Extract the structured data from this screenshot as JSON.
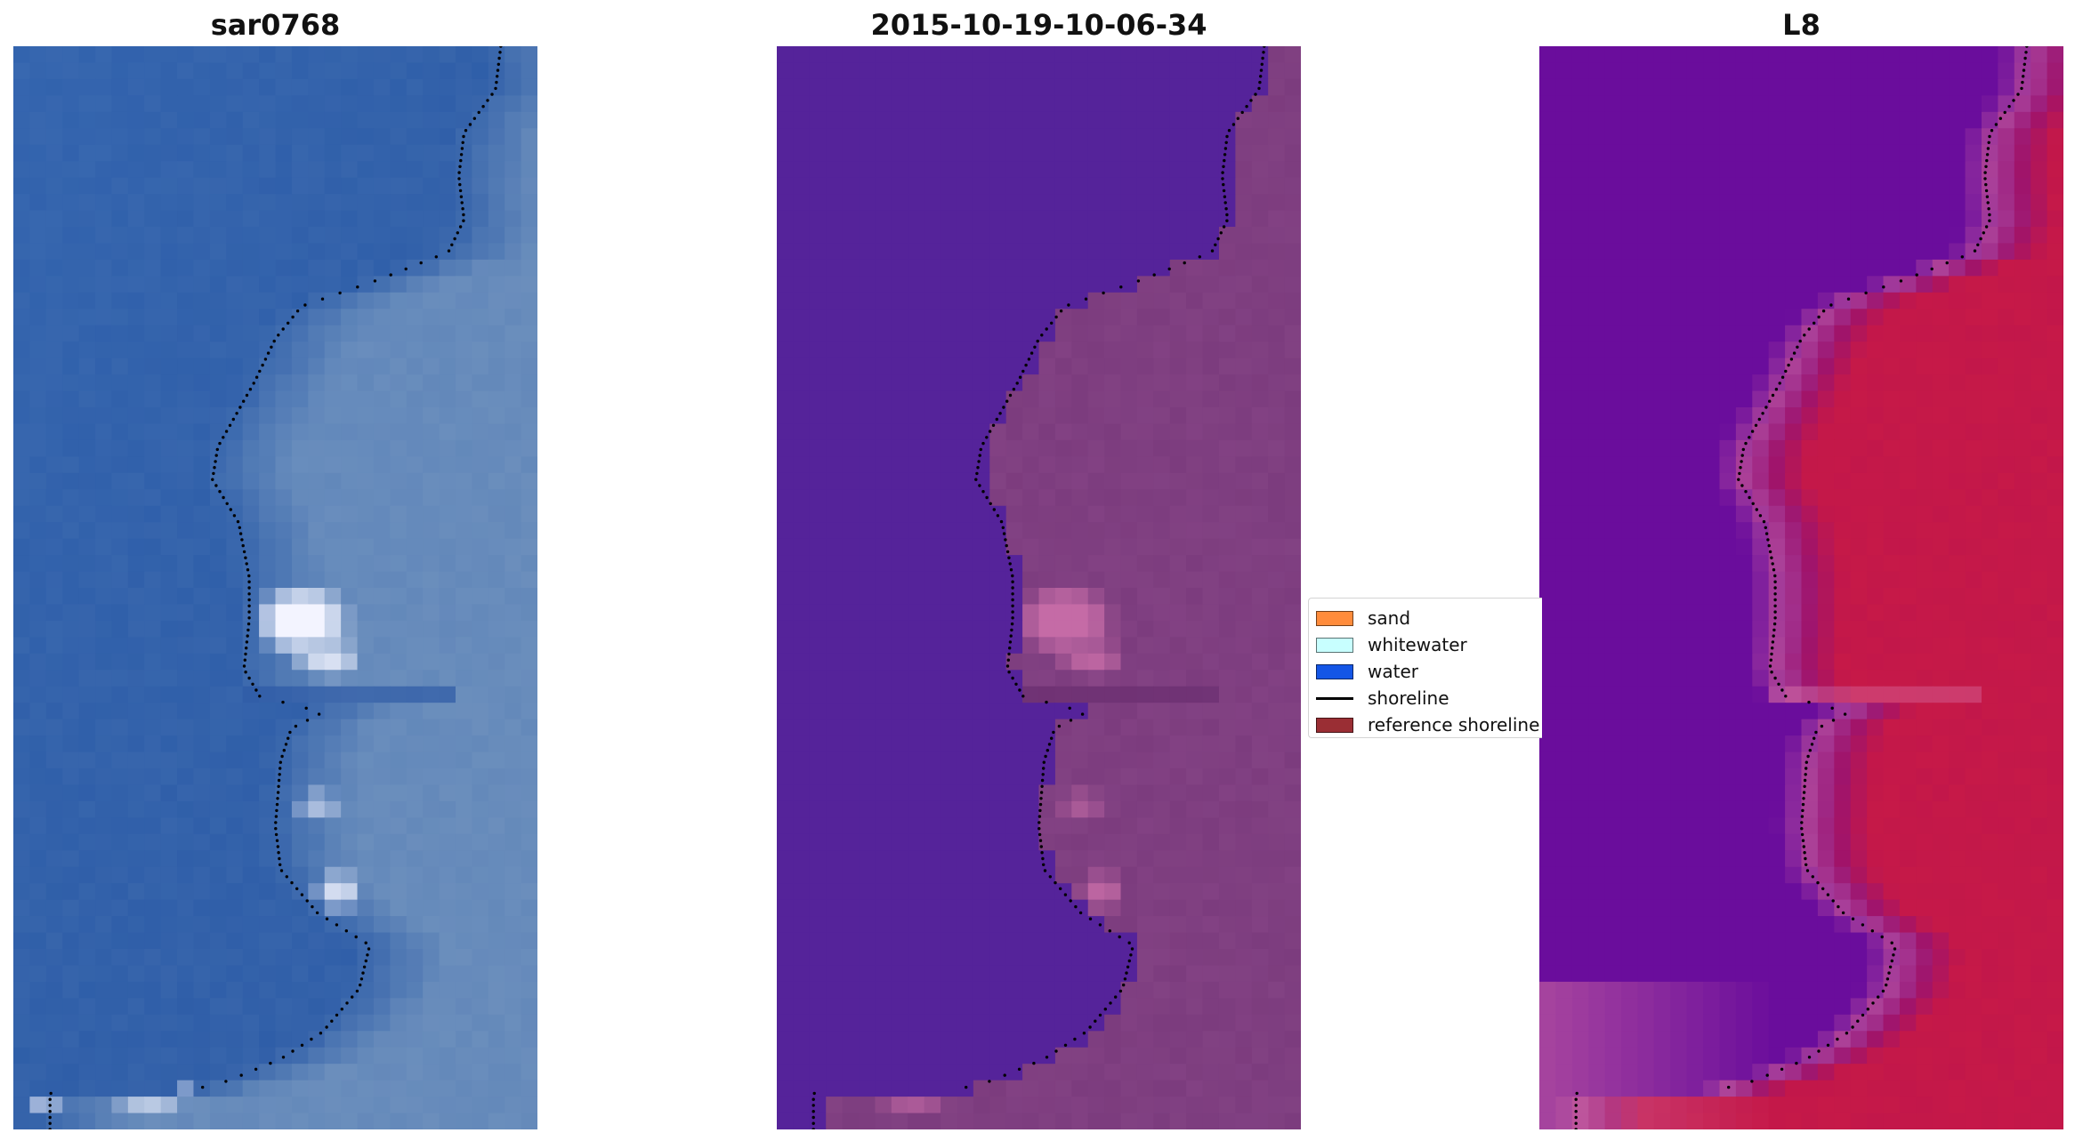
{
  "panels": [
    {
      "title": "sar0768",
      "kind": "rgb"
    },
    {
      "title": "2015-10-19-10-06-34",
      "kind": "classified"
    },
    {
      "title": "L8",
      "kind": "index"
    }
  ],
  "legend": {
    "items": [
      {
        "label": "sand",
        "color": "#ff8c3c",
        "type": "patch"
      },
      {
        "label": "whitewater",
        "color": "#c8ffff",
        "type": "patch"
      },
      {
        "label": "water",
        "color": "#1456e6",
        "type": "patch"
      },
      {
        "label": "shoreline",
        "color": "#000000",
        "type": "line"
      },
      {
        "label": "reference shoreline",
        "color": "#9a2e34",
        "type": "patch"
      }
    ]
  },
  "colors": {
    "rgb_water": "#2f5ea8",
    "rgb_land": "#6d90bd",
    "rgb_white": "#f3f4ff",
    "class_water": "#55239a",
    "class_land": "#7c3c7e",
    "class_bright": "#c56ba6",
    "index_water": "#6a0d9c",
    "index_land": "#c61948",
    "index_edge": "#d86b9f",
    "shoreline_dots": "#000000"
  }
}
